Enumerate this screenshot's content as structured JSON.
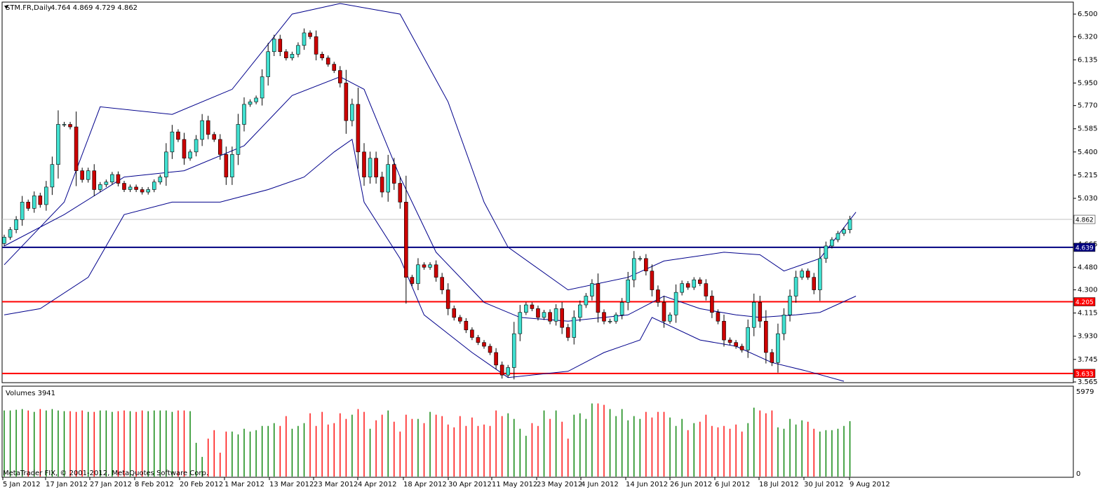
{
  "header": {
    "symbol_label": "STM.FR,Daily",
    "ohlc_label": "4.764 4.869 4.729 4.862"
  },
  "volume_panel": {
    "label": "Volumes 3941",
    "max_label": "5979",
    "min_label": "0"
  },
  "copyright": "MetaTrader FIX, © 2001-2012, MetaQuotes Software Corp.",
  "colors": {
    "bull_body": "#40e0d0",
    "bear_body": "#cc0000",
    "wick": "#000000",
    "band": "#00008b",
    "support_line": "#ff0000",
    "resistance_line": "#000080",
    "current_price_line": "#c0c0c0",
    "volume_up": "#008000",
    "volume_down": "#ff0000"
  },
  "chart_data": {
    "type": "candlestick",
    "title": "STM.FR,Daily",
    "y_range": [
      3.565,
      6.59
    ],
    "y_ticks": [
      "6.500",
      "6.320",
      "6.135",
      "5.950",
      "5.770",
      "5.585",
      "5.400",
      "5.215",
      "5.030",
      "4.665",
      "4.480",
      "4.300",
      "4.115",
      "3.930",
      "3.745",
      "3.565"
    ],
    "x_labels": [
      "5 Jan 2012",
      "17 Jan 2012",
      "27 Jan 2012",
      "8 Feb 2012",
      "20 Feb 2012",
      "1 Mar 2012",
      "13 Mar 2012",
      "23 Mar 2012",
      "4 Apr 2012",
      "18 Apr 2012",
      "30 Apr 2012",
      "11 May 2012",
      "23 May 2012",
      "4 Jun 2012",
      "14 Jun 2012",
      "26 Jun 2012",
      "6 Jul 2012",
      "18 Jul 2012",
      "30 Jul 2012",
      "9 Aug 2012"
    ],
    "price_labels": {
      "current": "4.862",
      "resistance": "4.639",
      "support_high": "4.205",
      "support_low": "3.633"
    },
    "horizontal_lines": {
      "current": 4.862,
      "resistance": 4.639,
      "support_high": 4.205,
      "support_low": 3.633
    },
    "closes": [
      4.72,
      4.78,
      4.86,
      5.0,
      4.95,
      5.05,
      4.98,
      5.12,
      5.3,
      5.62,
      5.62,
      5.6,
      5.25,
      5.18,
      5.25,
      5.1,
      5.14,
      5.16,
      5.22,
      5.15,
      5.1,
      5.12,
      5.1,
      5.08,
      5.1,
      5.16,
      5.2,
      5.4,
      5.56,
      5.5,
      5.35,
      5.4,
      5.5,
      5.65,
      5.54,
      5.5,
      5.38,
      5.2,
      5.38,
      5.62,
      5.78,
      5.8,
      5.83,
      6.0,
      6.2,
      6.3,
      6.2,
      6.15,
      6.18,
      6.25,
      6.35,
      6.32,
      6.18,
      6.15,
      6.1,
      6.05,
      5.95,
      5.65,
      5.78,
      5.4,
      5.2,
      5.35,
      5.2,
      5.08,
      5.3,
      5.15,
      5.0,
      4.4,
      4.35,
      4.5,
      4.48,
      4.5,
      4.4,
      4.3,
      4.15,
      4.08,
      4.05,
      3.98,
      3.92,
      3.88,
      3.85,
      3.8,
      3.7,
      3.62,
      3.68,
      3.95,
      4.12,
      4.18,
      4.15,
      4.08,
      4.12,
      4.05,
      4.15,
      4.0,
      3.92,
      4.08,
      4.18,
      4.25,
      4.35,
      4.12,
      4.05,
      4.05,
      4.1,
      4.2,
      4.38,
      4.55,
      4.55,
      4.45,
      4.3,
      4.2,
      4.05,
      4.1,
      4.28,
      4.35,
      4.32,
      4.38,
      4.35,
      4.25,
      4.12,
      4.05,
      3.9,
      3.88,
      3.85,
      3.82,
      4.0,
      4.2,
      4.05,
      3.8,
      3.72,
      3.95,
      4.1,
      4.25,
      4.4,
      4.45,
      4.4,
      4.3,
      4.55,
      4.65,
      4.7,
      4.75,
      4.78,
      4.862
    ],
    "upper_band_points": [
      [
        0,
        4.5
      ],
      [
        10,
        5.0
      ],
      [
        16,
        5.76
      ],
      [
        28,
        5.7
      ],
      [
        38,
        5.9
      ],
      [
        48,
        6.5
      ],
      [
        56,
        6.7
      ],
      [
        66,
        6.5
      ],
      [
        74,
        5.8
      ],
      [
        80,
        5.0
      ],
      [
        84,
        4.64
      ],
      [
        94,
        4.3
      ],
      [
        104,
        4.4
      ],
      [
        110,
        4.53
      ],
      [
        120,
        4.6
      ],
      [
        126,
        4.58
      ],
      [
        130,
        4.45
      ],
      [
        136,
        4.55
      ],
      [
        142,
        4.92
      ]
    ],
    "middle_band_points": [
      [
        0,
        4.65
      ],
      [
        10,
        4.9
      ],
      [
        20,
        5.2
      ],
      [
        30,
        5.25
      ],
      [
        40,
        5.45
      ],
      [
        48,
        5.85
      ],
      [
        56,
        6.0
      ],
      [
        60,
        5.9
      ],
      [
        66,
        5.2
      ],
      [
        72,
        4.6
      ],
      [
        80,
        4.2
      ],
      [
        86,
        4.08
      ],
      [
        94,
        4.05
      ],
      [
        104,
        4.1
      ],
      [
        110,
        4.25
      ],
      [
        116,
        4.15
      ],
      [
        122,
        4.1
      ],
      [
        126,
        4.08
      ],
      [
        132,
        4.1
      ],
      [
        136,
        4.12
      ],
      [
        142,
        4.25
      ]
    ],
    "lower_band_points": [
      [
        0,
        4.1
      ],
      [
        6,
        4.15
      ],
      [
        14,
        4.4
      ],
      [
        20,
        4.9
      ],
      [
        28,
        5.0
      ],
      [
        36,
        5.0
      ],
      [
        44,
        5.1
      ],
      [
        50,
        5.2
      ],
      [
        55,
        5.4
      ],
      [
        58,
        5.5
      ],
      [
        60,
        5.0
      ],
      [
        66,
        4.55
      ],
      [
        70,
        4.1
      ],
      [
        78,
        3.8
      ],
      [
        84,
        3.6
      ],
      [
        94,
        3.65
      ],
      [
        100,
        3.8
      ],
      [
        106,
        3.9
      ],
      [
        108,
        4.08
      ],
      [
        116,
        3.9
      ],
      [
        122,
        3.85
      ],
      [
        128,
        3.72
      ],
      [
        134,
        3.65
      ],
      [
        140,
        3.57
      ]
    ],
    "volume_max": 5979,
    "volumes": [
      4700,
      4700,
      4750,
      4800,
      4700,
      4600,
      4800,
      4700,
      4800,
      4700,
      4650,
      4650,
      4600,
      4700,
      4600,
      4600,
      4700,
      4700,
      4600,
      4650,
      4700,
      4650,
      4600,
      4700,
      4650,
      4700,
      4700,
      4700,
      4600,
      4700,
      4700,
      4650,
      2400,
      1400,
      2700,
      3300,
      1700,
      3200,
      3200,
      3000,
      3400,
      3200,
      3300,
      3600,
      3600,
      3800,
      3600,
      4300,
      3400,
      3600,
      3800,
      4500,
      3600,
      4600,
      3700,
      3800,
      4500,
      4100,
      4400,
      4800,
      4600,
      3400,
      4000,
      4400,
      4700,
      3900,
      3200,
      4400,
      4100,
      4100,
      3800,
      4600,
      4400,
      4300,
      3700,
      3500,
      4300,
      3600,
      4200,
      3600,
      3700,
      3600,
      4700,
      4300,
      4500,
      4100,
      3400,
      2900,
      3800,
      3600,
      4700,
      4100,
      4700,
      3900,
      2700,
      4400,
      4500,
      4100,
      5200,
      5200,
      5100,
      4800,
      4300,
      4800,
      4000,
      4300,
      4100,
      4600,
      4200,
      4600,
      4600,
      4200,
      3600,
      4100,
      3300,
      3800,
      3900,
      4400,
      3600,
      3500,
      3600,
      3400,
      3700,
      3200,
      3800,
      4900,
      4700,
      4500,
      4700,
      3500,
      3400,
      4100,
      3700,
      4000,
      3900,
      3400,
      3200,
      3300,
      3300,
      3400,
      3600,
      3941
    ]
  }
}
